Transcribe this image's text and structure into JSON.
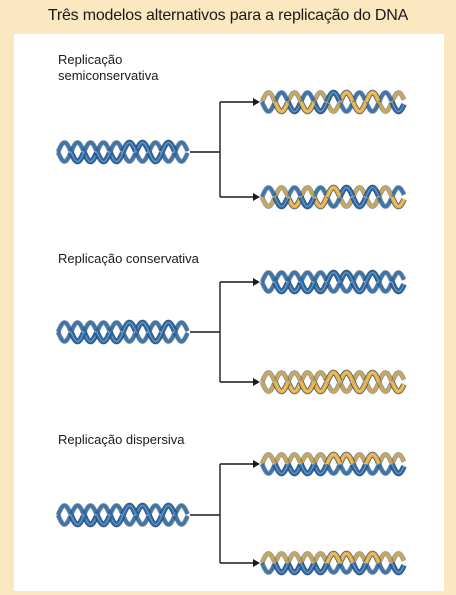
{
  "title": "Três modelos alternativos para a replicação do DNA",
  "colors": {
    "background": "#fbe7c0",
    "panel": "#ffffff",
    "parental_strand": "#2b6aa6",
    "new_strand": "#e2ab3f",
    "arrow": "#1a1a1a"
  },
  "models": [
    {
      "id": "semiconservative",
      "label_lines": [
        "Replicação",
        "semiconservativa"
      ],
      "daughter_top": [
        "parental",
        "new"
      ],
      "daughter_bottom": [
        "new",
        "parental"
      ]
    },
    {
      "id": "conservative",
      "label_lines": [
        "Replicação conservativa"
      ],
      "daughter_top": [
        "parental",
        "parental"
      ],
      "daughter_bottom": [
        "new",
        "new"
      ]
    },
    {
      "id": "dispersive",
      "label_lines": [
        "Replicação dispersiva"
      ],
      "daughter_top": [
        "mixed",
        "mixed"
      ],
      "daughter_bottom": [
        "mixed",
        "mixed"
      ]
    }
  ]
}
